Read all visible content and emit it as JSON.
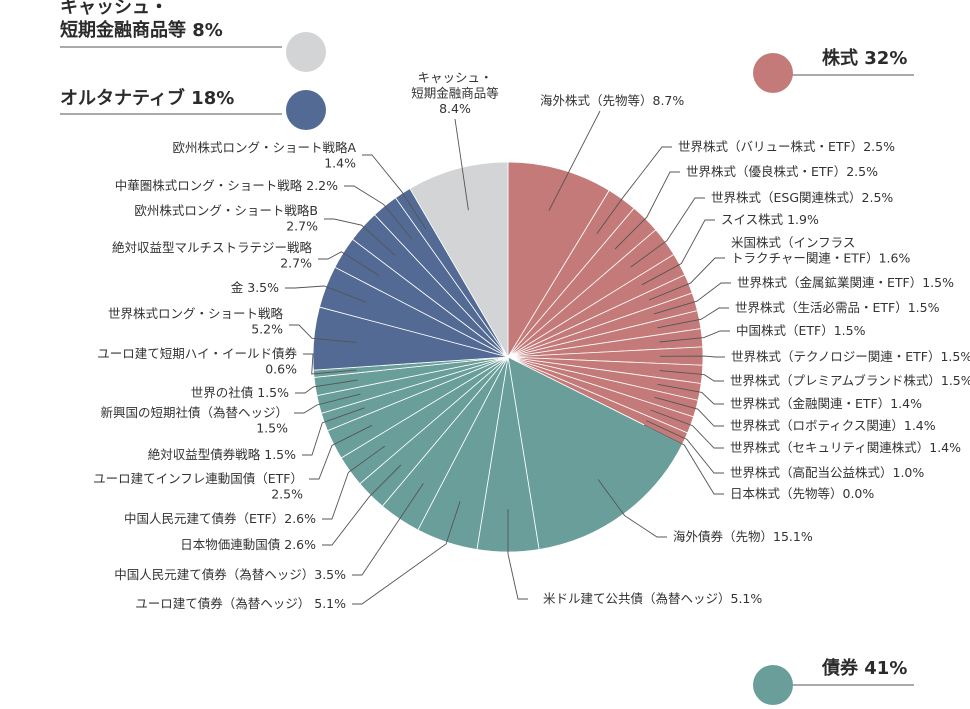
{
  "chart_data": {
    "type": "pie",
    "start_angle_deg": 0,
    "direction": "clockwise",
    "categories": [
      {
        "key": "stocks",
        "lines": [
          "株式 32%"
        ],
        "percent": 32,
        "color": "#c47a78"
      },
      {
        "key": "bonds",
        "lines": [
          "債券 41%"
        ],
        "percent": 41,
        "color": "#6a9e9a"
      },
      {
        "key": "alternatives",
        "lines": [
          "オルタナティブ 18%"
        ],
        "percent": 18,
        "color": "#536a94"
      },
      {
        "key": "cash",
        "lines": [
          "キャッシュ・",
          "短期金融商品等 8%"
        ],
        "percent": 8,
        "color": "#d3d4d6"
      }
    ],
    "slices": [
      {
        "group": "stocks",
        "value": 8.7,
        "lines": [
          "海外株式（先物等）8.7%"
        ]
      },
      {
        "group": "stocks",
        "value": 2.5,
        "lines": [
          "世界株式（バリュー株式・ETF）2.5%"
        ]
      },
      {
        "group": "stocks",
        "value": 2.5,
        "lines": [
          "世界株式（優良株式・ETF）2.5%"
        ]
      },
      {
        "group": "stocks",
        "value": 2.5,
        "lines": [
          "世界株式（ESG関連株式）2.5%"
        ]
      },
      {
        "group": "stocks",
        "value": 1.9,
        "lines": [
          "スイス株式 1.9%"
        ]
      },
      {
        "group": "stocks",
        "value": 1.6,
        "lines": [
          "米国株式（インフラス",
          "トラクチャー関連・ETF）1.6%"
        ]
      },
      {
        "group": "stocks",
        "value": 1.5,
        "lines": [
          "世界株式（金属鉱業関連・ETF）1.5%"
        ]
      },
      {
        "group": "stocks",
        "value": 1.5,
        "lines": [
          "世界株式（生活必需品・ETF）1.5%"
        ]
      },
      {
        "group": "stocks",
        "value": 1.5,
        "lines": [
          "中国株式（ETF）1.5%"
        ]
      },
      {
        "group": "stocks",
        "value": 1.5,
        "lines": [
          "世界株式（テクノロジー関連・ETF）1.5%"
        ]
      },
      {
        "group": "stocks",
        "value": 1.5,
        "lines": [
          "世界株式（プレミアムブランド株式）1.5%"
        ]
      },
      {
        "group": "stocks",
        "value": 1.4,
        "lines": [
          "世界株式（金融関連・ETF）1.4%"
        ]
      },
      {
        "group": "stocks",
        "value": 1.4,
        "lines": [
          "世界株式（ロボティクス関連）1.4%"
        ]
      },
      {
        "group": "stocks",
        "value": 1.4,
        "lines": [
          "世界株式（セキュリティ関連株式）1.4%"
        ]
      },
      {
        "group": "stocks",
        "value": 1.0,
        "lines": [
          "世界株式（高配当公益株式）1.0%"
        ]
      },
      {
        "group": "stocks",
        "value": 0.0,
        "lines": [
          "日本株式（先物等）0.0%"
        ]
      },
      {
        "group": "bonds",
        "value": 15.1,
        "lines": [
          "海外債券（先物）15.1%"
        ]
      },
      {
        "group": "bonds",
        "value": 5.1,
        "lines": [
          "米ドル建て公共債（為替ヘッジ）5.1%"
        ]
      },
      {
        "group": "bonds",
        "value": 5.1,
        "lines": [
          "ユーロ建て債券（為替ヘッジ） 5.1%"
        ]
      },
      {
        "group": "bonds",
        "value": 3.5,
        "lines": [
          "中国人民元建て債券（為替ヘッジ）3.5%"
        ]
      },
      {
        "group": "bonds",
        "value": 2.6,
        "lines": [
          "日本物価連動国債 2.6%"
        ]
      },
      {
        "group": "bonds",
        "value": 2.6,
        "lines": [
          "中国人民元建て債券（ETF）2.6%"
        ]
      },
      {
        "group": "bonds",
        "value": 2.5,
        "lines": [
          "ユーロ建てインフレ連動国債（ETF）",
          "2.5%"
        ]
      },
      {
        "group": "bonds",
        "value": 1.5,
        "lines": [
          "絶対収益型債券戦略 1.5%"
        ]
      },
      {
        "group": "bonds",
        "value": 1.5,
        "lines": [
          "新興国の短期社債（為替ヘッジ）",
          "1.5%"
        ]
      },
      {
        "group": "bonds",
        "value": 1.5,
        "lines": [
          "世界の社債 1.5%"
        ]
      },
      {
        "group": "bonds",
        "value": 0.6,
        "lines": [
          "ユーロ建て短期ハイ・イールド債券",
          "0.6%"
        ]
      },
      {
        "group": "alternatives",
        "value": 5.2,
        "lines": [
          "世界株式ロング・ショート戦略",
          "5.2%"
        ]
      },
      {
        "group": "alternatives",
        "value": 3.5,
        "lines": [
          "金 3.5%"
        ]
      },
      {
        "group": "alternatives",
        "value": 2.7,
        "lines": [
          "絶対収益型マルチストラテジー戦略",
          "2.7%"
        ]
      },
      {
        "group": "alternatives",
        "value": 2.7,
        "lines": [
          "欧州株式ロング・ショート戦略B",
          "2.7%"
        ]
      },
      {
        "group": "alternatives",
        "value": 2.2,
        "lines": [
          "中華圏株式ロング・ショート戦略 2.2%"
        ]
      },
      {
        "group": "alternatives",
        "value": 1.4,
        "lines": [
          "欧州株式ロング・ショート戦略A",
          "1.4%"
        ]
      },
      {
        "group": "cash",
        "value": 8.4,
        "lines": [
          "キャッシュ・",
          "短期金融商品等",
          "8.4%"
        ]
      }
    ]
  }
}
